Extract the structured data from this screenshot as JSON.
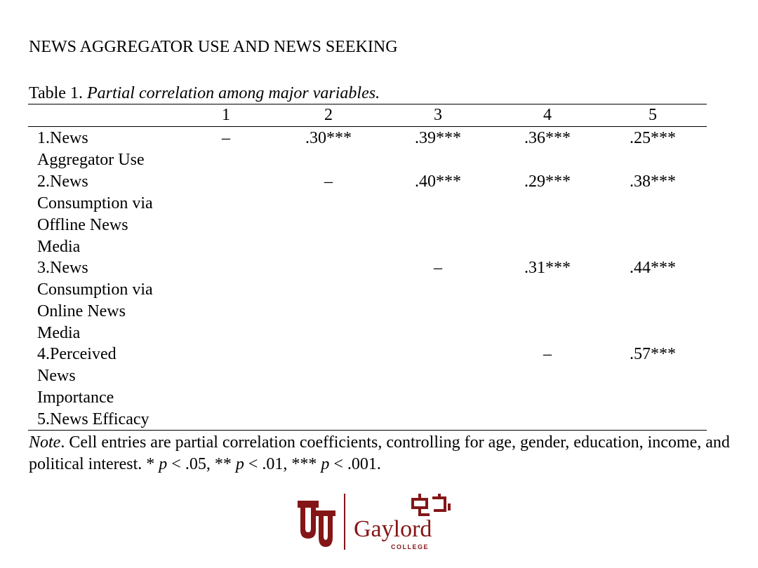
{
  "header": "NEWS AGGREGATOR USE AND NEWS SEEKING",
  "caption": {
    "prefix": "Table 1. ",
    "title": "Partial correlation among major variables."
  },
  "columns": [
    "1",
    "2",
    "3",
    "4",
    "5"
  ],
  "rows": [
    {
      "label_lines": [
        "1.News",
        "Aggregator Use"
      ],
      "cells": [
        "–",
        ".30***",
        ".39***",
        ".36***",
        ".25***"
      ]
    },
    {
      "label_lines": [
        "2.News",
        "Consumption via",
        "Offline News",
        "Media"
      ],
      "cells": [
        "",
        "–",
        ".40***",
        ".29***",
        ".38***"
      ]
    },
    {
      "label_lines": [
        "3.News",
        "Consumption via",
        "Online News",
        "Media"
      ],
      "cells": [
        "",
        "",
        "–",
        ".31***",
        ".44***"
      ]
    },
    {
      "label_lines": [
        "4.Perceived",
        "News",
        "Importance"
      ],
      "cells": [
        "",
        "",
        "",
        "–",
        ".57***"
      ]
    },
    {
      "label_lines": [
        "5.News Efficacy"
      ],
      "cells": [
        "",
        "",
        "",
        "",
        ""
      ]
    }
  ],
  "note": {
    "label": "Note",
    "text1": ". Cell entries are partial correlation coefficients, controlling for age, gender, education, income, and political interest. * ",
    "p1": "p",
    "text2": " < .05, ** ",
    "p2": "p",
    "text3": " < .01, *** ",
    "p3": "p",
    "text4": " < .001."
  },
  "logo": {
    "name": "Gaylord",
    "sub": "COLLEGE",
    "color": "#841617",
    "icon": "ou-logo-icon"
  }
}
